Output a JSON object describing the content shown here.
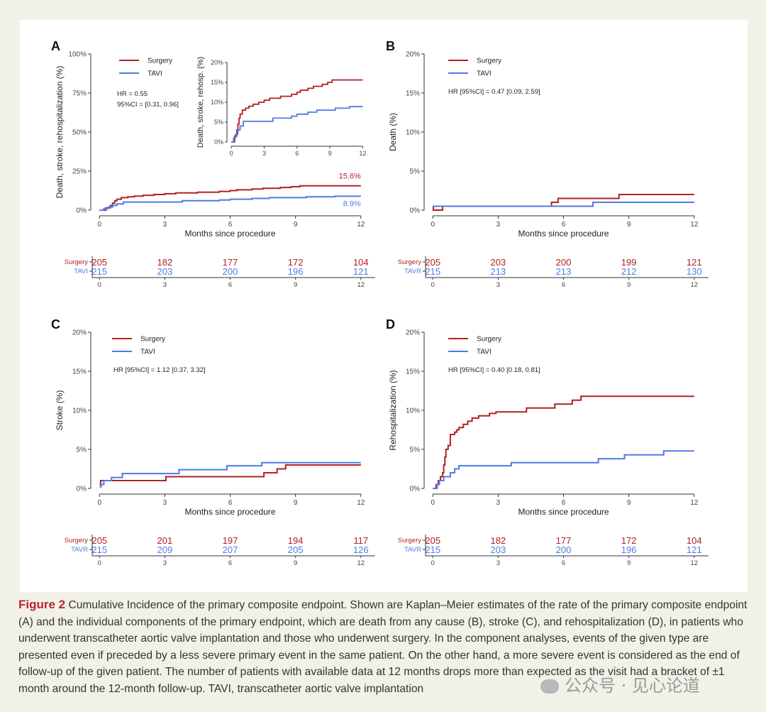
{
  "colors": {
    "surgery": "#b22126",
    "tavi": "#4d7ce6",
    "axis": "#333333",
    "text": "#222222"
  },
  "chart_data": [
    {
      "panel_label": "A",
      "type": "line",
      "ylabel": "Death, stroke, rehospitalization (%)",
      "xlabel": "Months since procedure",
      "ylim": [
        0,
        100
      ],
      "yticks": [
        "0%",
        "25%",
        "50%",
        "75%",
        "100%"
      ],
      "xticks": [
        "0",
        "3",
        "6",
        "9",
        "12"
      ],
      "legend": [
        "Surgery",
        "TAVI"
      ],
      "stat_lines": [
        "HR = 0.55",
        "95%CI = [0.31, 0.96]"
      ],
      "end_labels": [
        "15.6%",
        "8.9%"
      ],
      "series": [
        {
          "name": "Surgery",
          "points": [
            [
              0,
              0
            ],
            [
              0.3,
              1.5
            ],
            [
              0.5,
              3
            ],
            [
              0.6,
              4.5
            ],
            [
              0.7,
              6
            ],
            [
              0.8,
              7
            ],
            [
              1.0,
              8
            ],
            [
              1.3,
              8.5
            ],
            [
              1.6,
              9
            ],
            [
              2.0,
              9.5
            ],
            [
              2.5,
              10
            ],
            [
              3.0,
              10.5
            ],
            [
              3.5,
              11
            ],
            [
              4.5,
              11.5
            ],
            [
              5.5,
              12
            ],
            [
              6.0,
              12.5
            ],
            [
              6.3,
              13
            ],
            [
              7.0,
              13.5
            ],
            [
              7.5,
              14
            ],
            [
              8.3,
              14.5
            ],
            [
              8.8,
              15
            ],
            [
              9.2,
              15.6
            ],
            [
              12,
              15.6
            ]
          ]
        },
        {
          "name": "TAVI",
          "points": [
            [
              0,
              0
            ],
            [
              0.2,
              1
            ],
            [
              0.4,
              2
            ],
            [
              0.6,
              3
            ],
            [
              0.8,
              4
            ],
            [
              1.1,
              5.2
            ],
            [
              3.5,
              5.2
            ],
            [
              3.8,
              6
            ],
            [
              5.5,
              6.5
            ],
            [
              6.0,
              7
            ],
            [
              7.0,
              7.5
            ],
            [
              7.8,
              8
            ],
            [
              9.5,
              8.5
            ],
            [
              10.8,
              8.9
            ],
            [
              12,
              8.9
            ]
          ]
        }
      ],
      "inset": {
        "ylabel": "Death, stroke, rehosp. (%)",
        "ylim": [
          0,
          20
        ],
        "yticks": [
          "0%",
          "5%",
          "10%",
          "15%",
          "20%"
        ],
        "xticks": [
          "0",
          "3",
          "6",
          "9",
          "12"
        ]
      },
      "risk_table": {
        "rows": [
          {
            "label": "Surgery",
            "values": [
              "205",
              "182",
              "177",
              "172",
              "104"
            ]
          },
          {
            "label": "TAVI",
            "values": [
              "215",
              "203",
              "200",
              "196",
              "121"
            ]
          }
        ],
        "xticks": [
          "0",
          "3",
          "6",
          "9",
          "12"
        ]
      }
    },
    {
      "panel_label": "B",
      "type": "line",
      "ylabel": "Death (%)",
      "xlabel": "Months since procedure",
      "ylim": [
        0,
        20
      ],
      "yticks": [
        "0%",
        "5%",
        "10%",
        "15%",
        "20%"
      ],
      "xticks": [
        "0",
        "3",
        "6",
        "9",
        "12"
      ],
      "legend": [
        "Surgery",
        "TAVI"
      ],
      "stat_lines": [
        "HR [95%CI] = 0.47 [0.09, 2.59]"
      ],
      "end_labels": [],
      "series": [
        {
          "name": "Surgery",
          "points": [
            [
              0,
              0.5
            ],
            [
              0.02,
              0
            ],
            [
              0.4,
              0
            ],
            [
              0.45,
              0.5
            ],
            [
              5.4,
              0.5
            ],
            [
              5.45,
              1
            ],
            [
              5.7,
              1
            ],
            [
              5.75,
              1.5
            ],
            [
              8.5,
              1.5
            ],
            [
              8.55,
              2
            ],
            [
              12,
              2
            ]
          ]
        },
        {
          "name": "TAVI",
          "points": [
            [
              0,
              0.5
            ],
            [
              7.3,
              0.5
            ],
            [
              7.35,
              1
            ],
            [
              12,
              1
            ]
          ]
        }
      ],
      "risk_table": {
        "rows": [
          {
            "label": "Surgery",
            "values": [
              "205",
              "203",
              "200",
              "199",
              "121"
            ]
          },
          {
            "label": "TAVR",
            "values": [
              "215",
              "213",
              "213",
              "212",
              "130"
            ]
          }
        ],
        "xticks": [
          "0",
          "3",
          "6",
          "9",
          "12"
        ]
      }
    },
    {
      "panel_label": "C",
      "type": "line",
      "ylabel": "Stroke (%)",
      "xlabel": "Months since procedure",
      "ylim": [
        0,
        20
      ],
      "yticks": [
        "0%",
        "5%",
        "10%",
        "15%",
        "20%"
      ],
      "xticks": [
        "0",
        "3",
        "6",
        "9",
        "12"
      ],
      "legend": [
        "Surgery",
        "TAVI"
      ],
      "stat_lines": [
        "HR [95%CI] = 1.12 [0.37, 3.32]"
      ],
      "end_labels": [],
      "series": [
        {
          "name": "Surgery",
          "points": [
            [
              0,
              0.5
            ],
            [
              0.05,
              1
            ],
            [
              3.0,
              1
            ],
            [
              3.05,
              1.5
            ],
            [
              7.5,
              1.5
            ],
            [
              7.55,
              2
            ],
            [
              8.1,
              2
            ],
            [
              8.15,
              2.5
            ],
            [
              8.5,
              2.5
            ],
            [
              8.55,
              3
            ],
            [
              12,
              3
            ]
          ]
        },
        {
          "name": "TAVI",
          "points": [
            [
              0,
              0.2
            ],
            [
              0.08,
              0.5
            ],
            [
              0.15,
              0.5
            ],
            [
              0.2,
              1
            ],
            [
              0.5,
              1
            ],
            [
              0.55,
              1.4
            ],
            [
              1.0,
              1.4
            ],
            [
              1.05,
              1.9
            ],
            [
              3.6,
              1.9
            ],
            [
              3.65,
              2.4
            ],
            [
              5.8,
              2.4
            ],
            [
              5.85,
              2.9
            ],
            [
              7.4,
              2.9
            ],
            [
              7.45,
              3.3
            ],
            [
              12,
              3.3
            ]
          ]
        }
      ],
      "risk_table": {
        "rows": [
          {
            "label": "Surgery",
            "values": [
              "205",
              "201",
              "197",
              "194",
              "117"
            ]
          },
          {
            "label": "TAVR",
            "values": [
              "215",
              "209",
              "207",
              "205",
              "126"
            ]
          }
        ],
        "xticks": [
          "0",
          "3",
          "6",
          "9",
          "12"
        ]
      }
    },
    {
      "panel_label": "D",
      "type": "line",
      "ylabel": "Rehospitalization (%)",
      "xlabel": "Months since procedure",
      "ylim": [
        0,
        20
      ],
      "yticks": [
        "0%",
        "5%",
        "10%",
        "15%",
        "20%"
      ],
      "xticks": [
        "0",
        "3",
        "6",
        "9",
        "12"
      ],
      "legend": [
        "Surgery",
        "TAVI"
      ],
      "stat_lines": [
        "HR [95%CI] = 0.40 [0.18, 0.81]"
      ],
      "end_labels": [],
      "series": [
        {
          "name": "Surgery",
          "points": [
            [
              0,
              0
            ],
            [
              0.15,
              0.5
            ],
            [
              0.25,
              1
            ],
            [
              0.35,
              1.5
            ],
            [
              0.45,
              2
            ],
            [
              0.5,
              3
            ],
            [
              0.55,
              4
            ],
            [
              0.6,
              5
            ],
            [
              0.7,
              5.5
            ],
            [
              0.8,
              6.9
            ],
            [
              1.0,
              7.2
            ],
            [
              1.1,
              7.5
            ],
            [
              1.2,
              7.8
            ],
            [
              1.4,
              8.2
            ],
            [
              1.6,
              8.6
            ],
            [
              1.8,
              9
            ],
            [
              2.1,
              9.3
            ],
            [
              2.6,
              9.6
            ],
            [
              2.9,
              9.8
            ],
            [
              4.3,
              10.3
            ],
            [
              5.6,
              10.8
            ],
            [
              6.4,
              11.3
            ],
            [
              6.8,
              11.8
            ],
            [
              12,
              11.8
            ]
          ]
        },
        {
          "name": "TAVI",
          "points": [
            [
              0,
              0
            ],
            [
              0.2,
              0.5
            ],
            [
              0.3,
              1
            ],
            [
              0.5,
              1.5
            ],
            [
              0.8,
              2
            ],
            [
              1.0,
              2.5
            ],
            [
              1.2,
              2.9
            ],
            [
              3.6,
              3.3
            ],
            [
              7.5,
              3.3
            ],
            [
              7.6,
              3.8
            ],
            [
              8.8,
              4.3
            ],
            [
              10.6,
              4.8
            ],
            [
              12,
              4.8
            ]
          ]
        }
      ],
      "risk_table": {
        "rows": [
          {
            "label": "Surgery",
            "values": [
              "205",
              "182",
              "177",
              "172",
              "104"
            ]
          },
          {
            "label": "TAVR",
            "values": [
              "215",
              "203",
              "200",
              "196",
              "121"
            ]
          }
        ],
        "xticks": [
          "0",
          "3",
          "6",
          "9",
          "12"
        ]
      }
    }
  ],
  "caption": {
    "label": "Figure 2",
    "text": " Cumulative Incidence of the primary composite endpoint. Shown are Kaplan–Meier estimates of the rate of the primary composite endpoint (A) and the individual components of the primary endpoint, which are death from any cause (B), stroke (C), and rehospitalization (D), in patients who underwent transcatheter aortic valve implantation and those who underwent surgery. In the component analyses, events of the given type are presented even if preceded by a less severe primary event in the same patient. On the other hand, a more severe event is considered as the end of follow-up of the given patient. The number of patients with available data at 12 months drops more than expected as the visit had a bracket of ±1 month around the 12-month follow-up. TAVI, transcatheter aortic valve implantation"
  },
  "watermark": "公众号 · 见心论道"
}
